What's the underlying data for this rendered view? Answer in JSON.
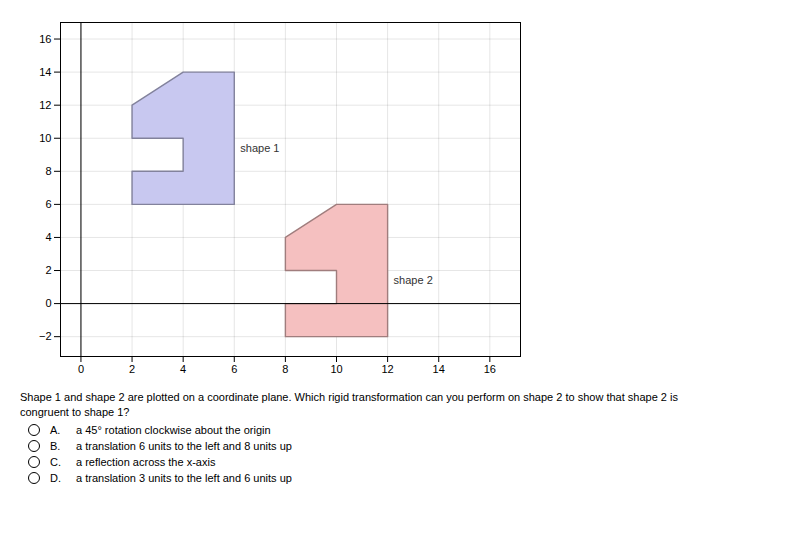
{
  "chart_data": {
    "type": "polygon",
    "series": [
      {
        "name": "shape 1",
        "color": "#c8c8f0",
        "vertices": [
          [
            4,
            6
          ],
          [
            6,
            6
          ],
          [
            6,
            14
          ],
          [
            4,
            14
          ],
          [
            2,
            12
          ],
          [
            2,
            10
          ],
          [
            4,
            10
          ],
          [
            4,
            8
          ],
          [
            2,
            8
          ],
          [
            2,
            6
          ]
        ]
      },
      {
        "name": "shape 2",
        "color": "#f5c0c0",
        "vertices": [
          [
            10,
            -2
          ],
          [
            12,
            -2
          ],
          [
            12,
            6
          ],
          [
            10,
            6
          ],
          [
            8,
            4
          ],
          [
            8,
            2
          ],
          [
            10,
            2
          ],
          [
            10,
            0
          ],
          [
            8,
            0
          ],
          [
            8,
            -2
          ]
        ]
      }
    ],
    "xlim": [
      -0.8,
      17.2
    ],
    "ylim": [
      -3.2,
      17.0
    ],
    "xticks": [
      0,
      2,
      4,
      6,
      8,
      10,
      12,
      14,
      16
    ],
    "yticks": [
      -2,
      0,
      2,
      4,
      6,
      8,
      10,
      12,
      14,
      16
    ],
    "grid": true,
    "question": [
      "Shape 1 and shape 2 are plotted on a coordinate plane. Which rigid transformation can you perform on shape 2 to show that shape 2 is",
      "congruent to shape 1?"
    ],
    "options": [
      [
        "A.",
        "a 45° rotation clockwise about the origin"
      ],
      [
        "B.",
        "a translation 6 units to the left and 8 units up"
      ],
      [
        "C.",
        "a reflection across the x-axis"
      ],
      [
        "D.",
        "a translation 3 units to the left and 6 units up"
      ]
    ]
  }
}
